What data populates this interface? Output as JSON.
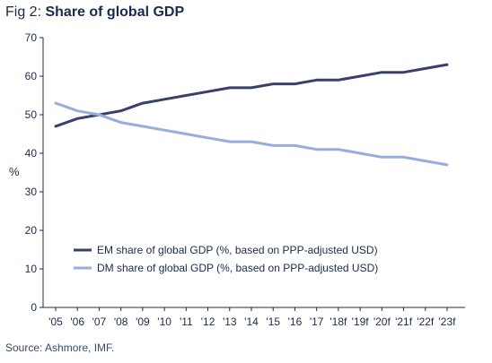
{
  "figure": {
    "prefix": "Fig 2: ",
    "title": "Share of global GDP",
    "source": "Source: Ashmore, IMF."
  },
  "chart_data": {
    "type": "line",
    "title": "Share of global GDP",
    "xlabel": "",
    "ylabel": "%",
    "ylim": [
      0,
      70
    ],
    "yticks": [
      0,
      10,
      20,
      30,
      40,
      50,
      60,
      70
    ],
    "grid": false,
    "legend_position": "lower-center",
    "categories": [
      "'05",
      "'06",
      "'07",
      "'08",
      "'09",
      "'10",
      "'11",
      "'12",
      "'13",
      "'14",
      "'15",
      "'16",
      "'17",
      "'18f",
      "'19f",
      "'20f",
      "'21f",
      "'22f",
      "'23f"
    ],
    "series": [
      {
        "name": "EM share of global GDP (%, based on PPP-adjusted USD)",
        "color": "#3b3f6b",
        "values": [
          47,
          49,
          50,
          51,
          53,
          54,
          55,
          56,
          57,
          57,
          58,
          58,
          59,
          59,
          60,
          61,
          61,
          62,
          63
        ]
      },
      {
        "name": "DM share of global GDP (%, based on PPP-adjusted USD)",
        "color": "#99ace0",
        "values": [
          53,
          51,
          50,
          48,
          47,
          46,
          45,
          44,
          43,
          43,
          42,
          42,
          41,
          41,
          40,
          39,
          39,
          38,
          37
        ]
      }
    ]
  }
}
